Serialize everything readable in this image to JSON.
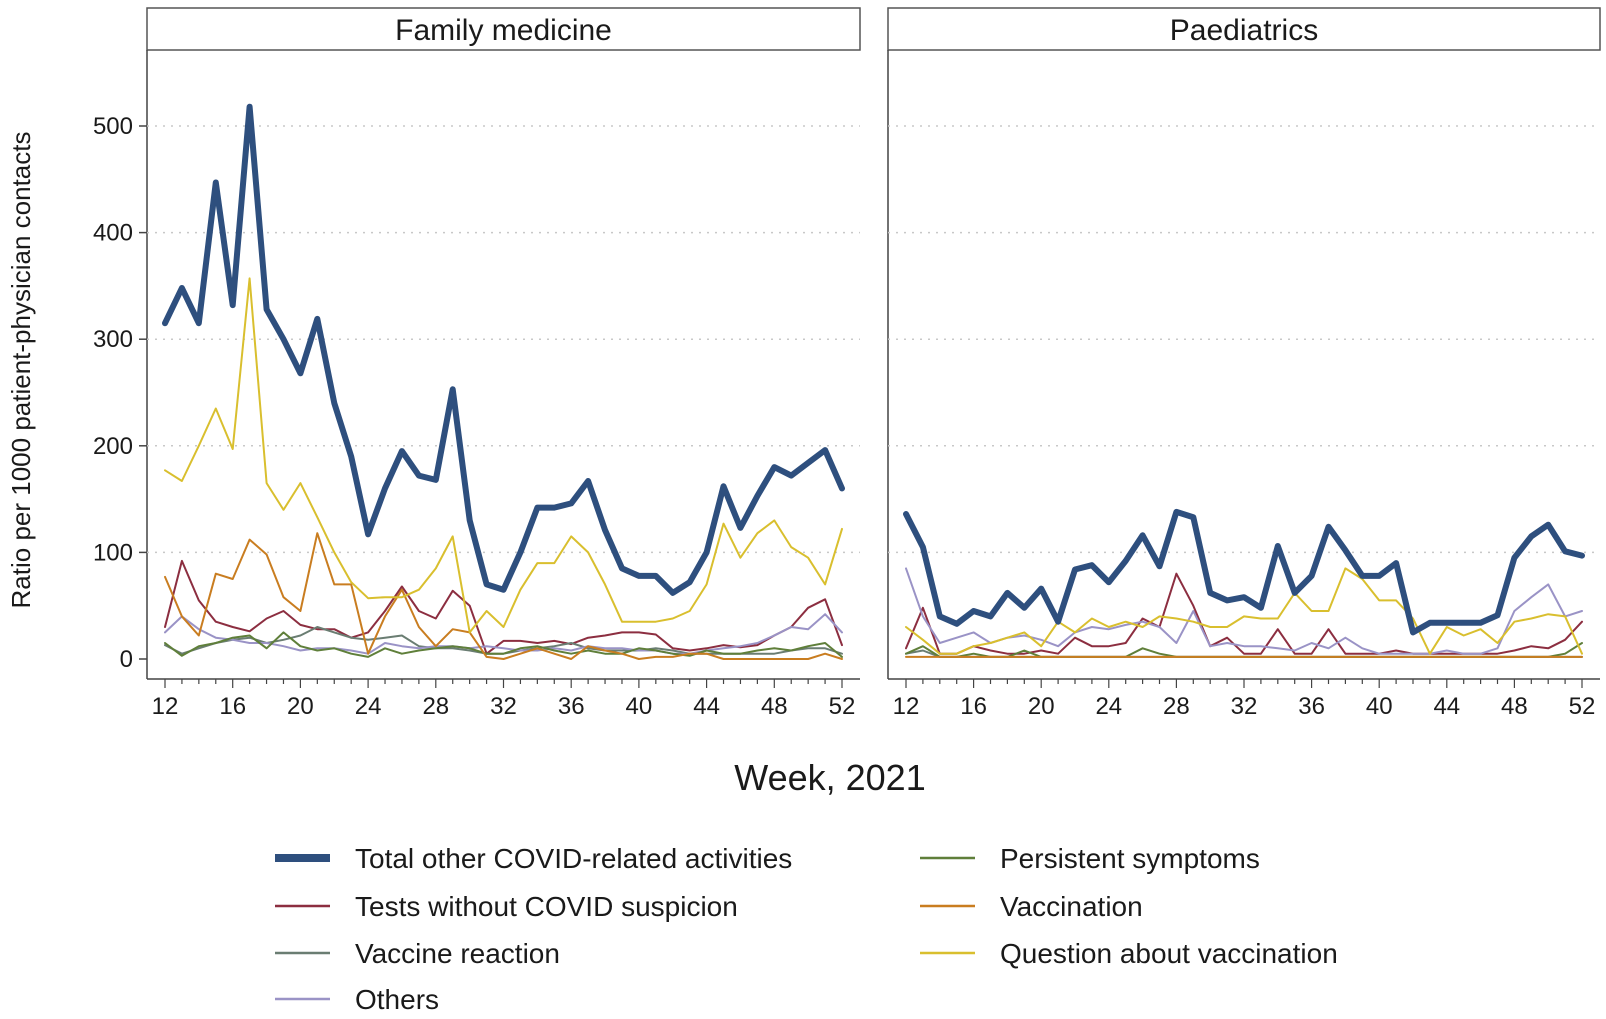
{
  "chart_data": {
    "type": "line",
    "panels": [
      "Family medicine",
      "Paediatrics"
    ],
    "xlabel": "Week, 2021",
    "ylabel": "Ratio per 1000 patient-physician contacts",
    "xlim": [
      12,
      52
    ],
    "ylim": [
      0,
      550
    ],
    "x_ticks": [
      12,
      16,
      20,
      24,
      28,
      32,
      36,
      40,
      44,
      48,
      52
    ],
    "y_ticks": [
      0,
      100,
      200,
      300,
      400,
      500
    ],
    "grid": "horizontal dotted",
    "legend_position": "bottom",
    "x": [
      12,
      13,
      14,
      15,
      16,
      17,
      18,
      19,
      20,
      21,
      22,
      23,
      24,
      25,
      26,
      27,
      28,
      29,
      30,
      31,
      32,
      33,
      34,
      35,
      36,
      37,
      38,
      39,
      40,
      41,
      42,
      43,
      44,
      45,
      46,
      47,
      48,
      49,
      50,
      51,
      52
    ],
    "series": [
      {
        "name": "Total other COVID-related activities",
        "color": "#2e4f7e",
        "width": 6,
        "values": {
          "Family medicine": [
            315,
            348,
            315,
            447,
            332,
            518,
            328,
            300,
            268,
            319,
            240,
            190,
            117,
            160,
            195,
            172,
            168,
            253,
            130,
            70,
            65,
            100,
            142,
            142,
            146,
            167,
            121,
            85,
            78,
            78,
            62,
            72,
            100,
            162,
            123,
            153,
            180,
            172,
            184,
            196,
            160
          ],
          "Paediatrics": [
            136,
            105,
            40,
            33,
            45,
            40,
            62,
            48,
            66,
            35,
            84,
            88,
            72,
            92,
            116,
            87,
            138,
            133,
            62,
            55,
            58,
            48,
            106,
            62,
            78,
            124,
            102,
            78,
            78,
            90,
            25,
            34,
            34,
            34,
            34,
            41,
            95,
            115,
            126,
            101,
            97
          ]
        }
      },
      {
        "name": "Tests without COVID suspicion",
        "color": "#8c2e40",
        "width": 2,
        "values": {
          "Family medicine": [
            30,
            92,
            55,
            35,
            30,
            26,
            38,
            45,
            32,
            28,
            28,
            20,
            25,
            45,
            68,
            45,
            38,
            64,
            50,
            5,
            17,
            17,
            15,
            17,
            14,
            20,
            22,
            25,
            25,
            23,
            10,
            8,
            10,
            13,
            11,
            13,
            22,
            30,
            48,
            56,
            13
          ],
          "Paediatrics": [
            10,
            48,
            5,
            5,
            12,
            8,
            5,
            5,
            8,
            5,
            20,
            12,
            12,
            15,
            38,
            30,
            80,
            50,
            12,
            20,
            5,
            5,
            28,
            5,
            5,
            28,
            5,
            5,
            5,
            8,
            5,
            5,
            5,
            5,
            5,
            5,
            8,
            12,
            10,
            18,
            35
          ]
        }
      },
      {
        "name": "Vaccine reaction",
        "color": "#6a7d72",
        "width": 2,
        "values": {
          "Family medicine": [
            13,
            5,
            10,
            15,
            18,
            20,
            15,
            18,
            22,
            30,
            25,
            20,
            18,
            20,
            22,
            12,
            10,
            10,
            8,
            5,
            5,
            8,
            10,
            12,
            15,
            10,
            8,
            8,
            8,
            10,
            8,
            5,
            5,
            5,
            5,
            5,
            5,
            8,
            10,
            10,
            5
          ],
          "Paediatrics": [
            5,
            8,
            2,
            2,
            2,
            2,
            2,
            2,
            2,
            2,
            2,
            2,
            2,
            2,
            2,
            2,
            2,
            2,
            2,
            2,
            2,
            2,
            2,
            2,
            2,
            2,
            2,
            2,
            2,
            2,
            2,
            2,
            2,
            2,
            2,
            2,
            2,
            2,
            2,
            2,
            2
          ]
        }
      },
      {
        "name": "Others",
        "color": "#9a93c6",
        "width": 2,
        "values": {
          "Family medicine": [
            25,
            40,
            28,
            20,
            18,
            15,
            15,
            12,
            8,
            10,
            10,
            8,
            5,
            15,
            12,
            10,
            12,
            12,
            10,
            12,
            10,
            8,
            8,
            10,
            8,
            12,
            10,
            10,
            8,
            8,
            5,
            5,
            8,
            10,
            12,
            15,
            22,
            30,
            28,
            42,
            25
          ],
          "Paediatrics": [
            85,
            40,
            15,
            20,
            25,
            15,
            20,
            22,
            18,
            12,
            25,
            30,
            28,
            32,
            35,
            30,
            15,
            45,
            12,
            15,
            12,
            12,
            10,
            8,
            15,
            10,
            20,
            10,
            5,
            5,
            5,
            5,
            8,
            5,
            5,
            10,
            45,
            58,
            70,
            40,
            45
          ]
        }
      },
      {
        "name": "Persistent symptoms",
        "color": "#5f7f3a",
        "width": 2,
        "values": {
          "Family medicine": [
            15,
            3,
            12,
            15,
            20,
            22,
            10,
            25,
            12,
            8,
            10,
            5,
            2,
            10,
            5,
            8,
            10,
            12,
            10,
            5,
            5,
            10,
            12,
            8,
            5,
            8,
            5,
            5,
            10,
            8,
            5,
            3,
            8,
            5,
            5,
            8,
            10,
            8,
            12,
            15,
            2
          ],
          "Paediatrics": [
            5,
            12,
            2,
            2,
            5,
            2,
            2,
            8,
            2,
            2,
            2,
            2,
            2,
            2,
            10,
            5,
            2,
            2,
            2,
            2,
            2,
            2,
            2,
            2,
            2,
            2,
            2,
            2,
            2,
            2,
            2,
            2,
            2,
            2,
            2,
            2,
            2,
            2,
            2,
            5,
            15
          ]
        }
      },
      {
        "name": "Vaccination",
        "color": "#c97d20",
        "width": 2,
        "values": {
          "Family medicine": [
            77,
            40,
            22,
            80,
            75,
            112,
            98,
            58,
            45,
            118,
            70,
            70,
            5,
            40,
            65,
            30,
            12,
            28,
            25,
            2,
            0,
            5,
            10,
            5,
            0,
            12,
            8,
            5,
            0,
            2,
            2,
            5,
            5,
            0,
            0,
            0,
            0,
            0,
            0,
            5,
            0
          ],
          "Paediatrics": [
            2,
            2,
            2,
            2,
            2,
            2,
            2,
            2,
            2,
            2,
            2,
            2,
            2,
            2,
            2,
            2,
            2,
            2,
            2,
            2,
            2,
            2,
            2,
            2,
            2,
            2,
            2,
            2,
            2,
            2,
            2,
            2,
            2,
            2,
            2,
            2,
            2,
            2,
            2,
            2,
            2
          ]
        }
      },
      {
        "name": "Question about vaccination",
        "color": "#d9bf2e",
        "width": 2,
        "values": {
          "Family medicine": [
            177,
            167,
            200,
            235,
            197,
            357,
            165,
            140,
            165,
            133,
            100,
            72,
            57,
            58,
            58,
            65,
            85,
            115,
            25,
            45,
            30,
            65,
            90,
            90,
            115,
            100,
            70,
            35,
            35,
            35,
            38,
            45,
            70,
            127,
            95,
            118,
            130,
            105,
            95,
            70,
            122
          ],
          "Paediatrics": [
            30,
            18,
            5,
            5,
            12,
            15,
            20,
            25,
            12,
            35,
            25,
            38,
            30,
            35,
            30,
            40,
            38,
            35,
            30,
            30,
            40,
            38,
            38,
            62,
            45,
            45,
            85,
            75,
            55,
            55,
            38,
            5,
            30,
            22,
            28,
            15,
            35,
            38,
            42,
            40,
            5
          ]
        }
      }
    ],
    "legend": [
      "Total other COVID-related activities",
      "Persistent symptoms",
      "Tests without COVID suspicion",
      "Vaccination",
      "Vaccine reaction",
      "Question about vaccination",
      "Others"
    ]
  }
}
